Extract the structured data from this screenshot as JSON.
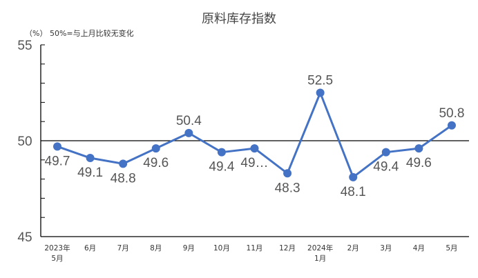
{
  "chart_data": {
    "type": "line",
    "title": "原料库存指数",
    "unit_note": "（%）  50%=与上月比较无变化",
    "categories": [
      [
        "2023年",
        "5月"
      ],
      [
        "6月"
      ],
      [
        "7月"
      ],
      [
        "8月"
      ],
      [
        "9月"
      ],
      [
        "10月"
      ],
      [
        "11月"
      ],
      [
        "12月"
      ],
      [
        "2024年",
        "1月"
      ],
      [
        "2月"
      ],
      [
        "3月"
      ],
      [
        "4月"
      ],
      [
        "5月"
      ]
    ],
    "values": [
      49.7,
      49.1,
      48.8,
      49.6,
      50.4,
      49.4,
      49.6,
      48.3,
      52.5,
      48.1,
      49.4,
      49.6,
      50.8
    ],
    "data_labels": [
      "49.7",
      "49.1",
      "48.8",
      "49.6",
      "50.4",
      "49.4",
      "49…",
      "48.3",
      "52.5",
      "48.1",
      "49.4",
      "49.6",
      "50.8"
    ],
    "label_position": [
      "below",
      "below",
      "below",
      "below",
      "above",
      "below",
      "below",
      "below",
      "above",
      "below",
      "below",
      "below",
      "above"
    ],
    "ylim": [
      45,
      55
    ],
    "yticks": [
      45,
      50,
      55
    ],
    "y_minor_step": 1,
    "reference_line": 50,
    "line_color": "#4472C4",
    "marker_color": "#4472C4",
    "grid": false,
    "legend": "none"
  }
}
